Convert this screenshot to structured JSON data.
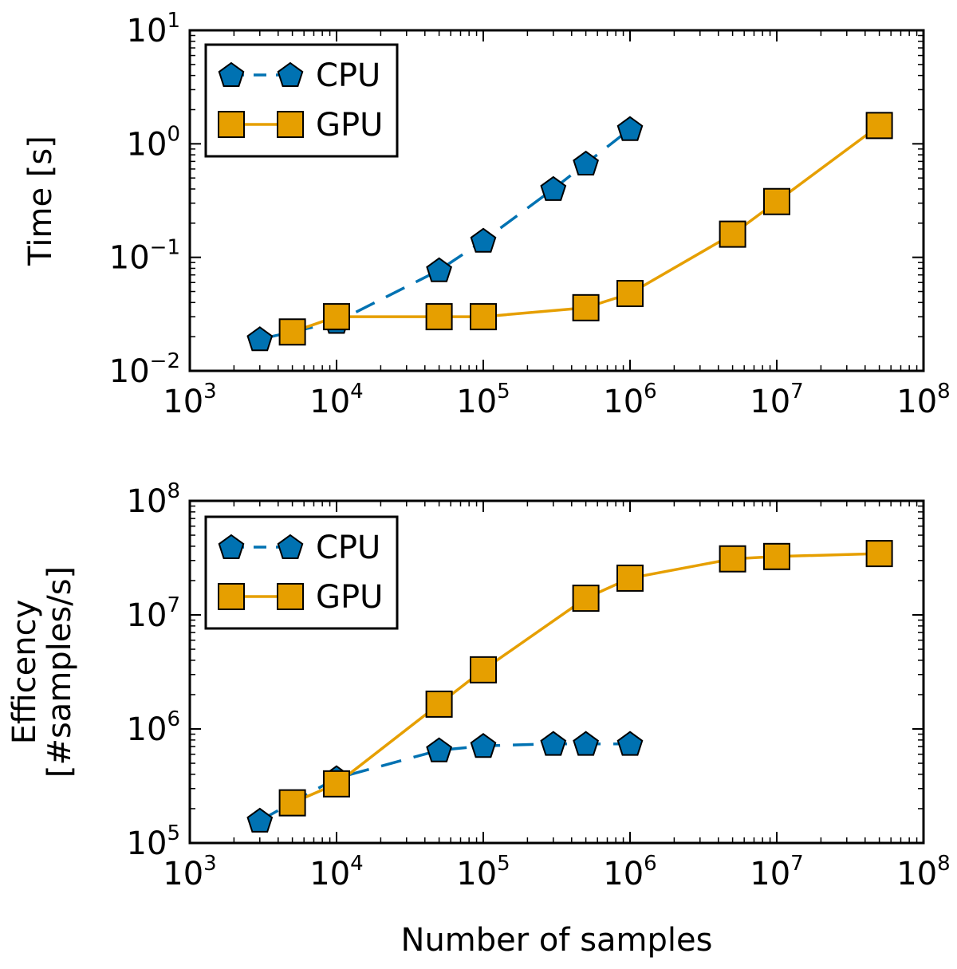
{
  "colors": {
    "cpu": "#0072b2",
    "gpu": "#e69f00",
    "marker_edge": "#000000",
    "axes": "#000000",
    "background": "#ffffff"
  },
  "shared_xlabel": "Number of samples",
  "chart_data": [
    {
      "type": "line",
      "xscale": "log",
      "yscale": "log",
      "xlim": [
        1000,
        100000000
      ],
      "ylim": [
        0.01,
        10
      ],
      "xticks": [
        {
          "base": "10",
          "exp": "3",
          "value": 1000
        },
        {
          "base": "10",
          "exp": "4",
          "value": 10000
        },
        {
          "base": "10",
          "exp": "5",
          "value": 100000
        },
        {
          "base": "10",
          "exp": "6",
          "value": 1000000
        },
        {
          "base": "10",
          "exp": "7",
          "value": 10000000
        },
        {
          "base": "10",
          "exp": "8",
          "value": 100000000
        }
      ],
      "yticks": [
        {
          "base": "10",
          "exp": "−2",
          "value": 0.01
        },
        {
          "base": "10",
          "exp": "−1",
          "value": 0.1
        },
        {
          "base": "10",
          "exp": "0",
          "value": 1
        },
        {
          "base": "10",
          "exp": "1",
          "value": 10
        }
      ],
      "ylabel": [
        "Time [s]"
      ],
      "legend_position": "top-left",
      "series": [
        {
          "name": "CPU",
          "style": "dashed",
          "marker": "pentagon",
          "color_key": "cpu",
          "x": [
            3000,
            10000,
            50000,
            100000,
            300000,
            500000,
            1000000
          ],
          "y": [
            0.019,
            0.027,
            0.077,
            0.14,
            0.4,
            0.67,
            1.35
          ]
        },
        {
          "name": "GPU",
          "style": "solid",
          "marker": "square",
          "color_key": "gpu",
          "x": [
            5000,
            10000,
            50000,
            100000,
            500000,
            1000000,
            5000000,
            10000000,
            50000000
          ],
          "y": [
            0.022,
            0.03,
            0.03,
            0.03,
            0.036,
            0.048,
            0.16,
            0.31,
            1.45
          ]
        }
      ]
    },
    {
      "type": "line",
      "xscale": "log",
      "yscale": "log",
      "xlim": [
        1000,
        100000000
      ],
      "ylim": [
        100000,
        100000000
      ],
      "xticks": [
        {
          "base": "10",
          "exp": "3",
          "value": 1000
        },
        {
          "base": "10",
          "exp": "4",
          "value": 10000
        },
        {
          "base": "10",
          "exp": "5",
          "value": 100000
        },
        {
          "base": "10",
          "exp": "6",
          "value": 1000000
        },
        {
          "base": "10",
          "exp": "7",
          "value": 10000000
        },
        {
          "base": "10",
          "exp": "8",
          "value": 100000000
        }
      ],
      "yticks": [
        {
          "base": "10",
          "exp": "5",
          "value": 100000
        },
        {
          "base": "10",
          "exp": "6",
          "value": 1000000
        },
        {
          "base": "10",
          "exp": "7",
          "value": 10000000
        },
        {
          "base": "10",
          "exp": "8",
          "value": 100000000
        }
      ],
      "ylabel": [
        "Efficency",
        "[#samples/s]"
      ],
      "legend_position": "top-left",
      "series": [
        {
          "name": "CPU",
          "style": "dashed",
          "marker": "pentagon",
          "color_key": "cpu",
          "x": [
            3000,
            10000,
            50000,
            100000,
            300000,
            500000,
            1000000
          ],
          "y": [
            157000,
            370000,
            650000,
            710000,
            740000,
            740000,
            740000
          ]
        },
        {
          "name": "GPU",
          "style": "solid",
          "marker": "square",
          "color_key": "gpu",
          "x": [
            5000,
            10000,
            50000,
            100000,
            500000,
            1000000,
            5000000,
            10000000,
            50000000
          ],
          "y": [
            225000,
            330000,
            1650000,
            3300000,
            14000000,
            21000000,
            31000000,
            32500000,
            34500000
          ]
        }
      ]
    }
  ]
}
